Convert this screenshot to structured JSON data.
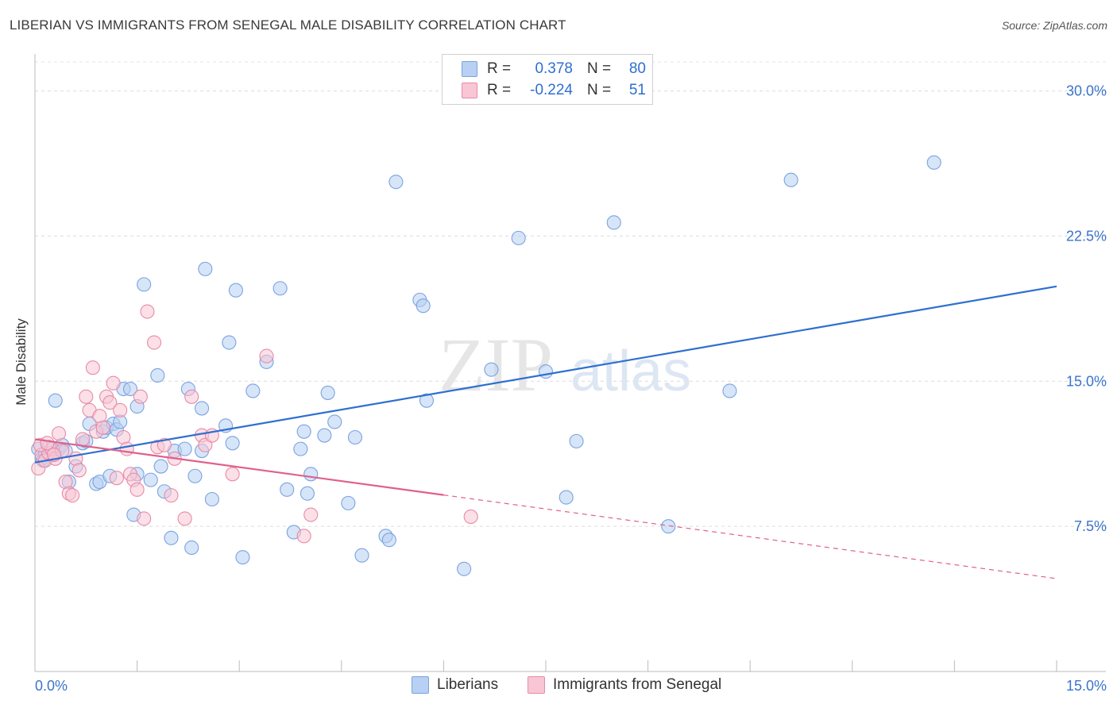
{
  "title": "LIBERIAN VS IMMIGRANTS FROM SENEGAL MALE DISABILITY CORRELATION CHART",
  "source": "Source: ZipAtlas.com",
  "watermark": {
    "zip": "ZIP",
    "atlas": "atlas"
  },
  "legend": {
    "r_label": "R =",
    "n_label": "N =",
    "rows": [
      {
        "r": "0.378",
        "n": "80",
        "color": "#b7d0f3",
        "border": "#7aa3e0"
      },
      {
        "r": "-0.224",
        "n": "51",
        "color": "#f8c6d4",
        "border": "#e88aa8"
      }
    ]
  },
  "bottom_legend": [
    {
      "label": "Liberians",
      "color": "#b7d0f3",
      "border": "#7aa3e0"
    },
    {
      "label": "Immigrants from Senegal",
      "color": "#f8c6d4",
      "border": "#e88aa8"
    }
  ],
  "chart_data": {
    "type": "scatter",
    "xlabel": "",
    "ylabel": "Male Disability",
    "xlim": [
      0,
      15
    ],
    "ylim": [
      0,
      31.5
    ],
    "x_tick_labels": [
      "0.0%",
      "15.0%"
    ],
    "y_ticks": [
      7.5,
      15.0,
      22.5,
      30.0
    ],
    "y_tick_labels": [
      "7.5%",
      "15.0%",
      "22.5%",
      "30.0%"
    ],
    "grid": true,
    "legend_position": "top-center",
    "series": [
      {
        "name": "Liberians",
        "color": "#7aa3e0",
        "fill": "#b7d0f3",
        "trend": {
          "x": [
            0,
            15
          ],
          "y": [
            10.8,
            19.9
          ],
          "color": "#2e6fd0",
          "dashed_from": null
        },
        "points": [
          [
            0.05,
            11.5
          ],
          [
            0.1,
            11.0
          ],
          [
            0.15,
            11.3
          ],
          [
            0.2,
            11.6
          ],
          [
            0.25,
            11.2
          ],
          [
            0.3,
            14.0
          ],
          [
            0.35,
            11.5
          ],
          [
            0.4,
            11.7
          ],
          [
            0.45,
            11.4
          ],
          [
            0.5,
            9.8
          ],
          [
            0.6,
            10.6
          ],
          [
            0.7,
            11.8
          ],
          [
            0.75,
            11.9
          ],
          [
            0.8,
            12.8
          ],
          [
            0.9,
            9.7
          ],
          [
            0.95,
            9.8
          ],
          [
            1.0,
            12.4
          ],
          [
            1.05,
            12.6
          ],
          [
            1.1,
            10.1
          ],
          [
            1.15,
            12.8
          ],
          [
            1.2,
            12.5
          ],
          [
            1.25,
            12.9
          ],
          [
            1.3,
            14.6
          ],
          [
            1.4,
            14.6
          ],
          [
            1.45,
            8.1
          ],
          [
            1.5,
            13.7
          ],
          [
            1.5,
            10.2
          ],
          [
            1.6,
            20.0
          ],
          [
            1.7,
            9.9
          ],
          [
            1.8,
            15.3
          ],
          [
            1.85,
            10.6
          ],
          [
            1.9,
            9.3
          ],
          [
            2.0,
            6.9
          ],
          [
            2.05,
            11.4
          ],
          [
            2.2,
            11.5
          ],
          [
            2.25,
            14.6
          ],
          [
            2.3,
            6.4
          ],
          [
            2.35,
            10.1
          ],
          [
            2.45,
            11.4
          ],
          [
            2.45,
            13.6
          ],
          [
            2.5,
            20.8
          ],
          [
            2.6,
            8.9
          ],
          [
            2.8,
            12.7
          ],
          [
            2.85,
            17.0
          ],
          [
            2.9,
            11.8
          ],
          [
            2.95,
            19.7
          ],
          [
            3.05,
            5.9
          ],
          [
            3.2,
            14.5
          ],
          [
            3.4,
            16.0
          ],
          [
            3.6,
            19.8
          ],
          [
            3.7,
            9.4
          ],
          [
            3.8,
            7.2
          ],
          [
            3.9,
            11.5
          ],
          [
            3.95,
            12.4
          ],
          [
            4.0,
            9.2
          ],
          [
            4.05,
            10.2
          ],
          [
            4.25,
            12.2
          ],
          [
            4.3,
            14.4
          ],
          [
            4.4,
            12.9
          ],
          [
            4.6,
            8.7
          ],
          [
            4.7,
            12.1
          ],
          [
            4.8,
            6.0
          ],
          [
            5.15,
            7.0
          ],
          [
            5.2,
            6.8
          ],
          [
            5.3,
            25.3
          ],
          [
            5.65,
            19.2
          ],
          [
            5.7,
            18.9
          ],
          [
            5.75,
            14.0
          ],
          [
            6.3,
            5.3
          ],
          [
            6.7,
            15.6
          ],
          [
            7.1,
            22.4
          ],
          [
            7.5,
            15.5
          ],
          [
            7.8,
            9.0
          ],
          [
            7.95,
            11.9
          ],
          [
            8.5,
            23.2
          ],
          [
            9.3,
            7.5
          ],
          [
            10.2,
            14.5
          ],
          [
            11.1,
            25.4
          ],
          [
            13.2,
            26.3
          ],
          [
            0.12,
            10.9
          ]
        ]
      },
      {
        "name": "Immigrants from Senegal",
        "color": "#e88aa8",
        "fill": "#f8c6d4",
        "trend": {
          "x": [
            0,
            15
          ],
          "y": [
            12.0,
            4.8
          ],
          "color": "#e0608c",
          "dashed_from": 6.0
        },
        "points": [
          [
            0.05,
            10.5
          ],
          [
            0.1,
            11.2
          ],
          [
            0.15,
            10.9
          ],
          [
            0.2,
            11.3
          ],
          [
            0.25,
            11.5
          ],
          [
            0.3,
            11.0
          ],
          [
            0.35,
            12.3
          ],
          [
            0.4,
            11.4
          ],
          [
            0.45,
            9.8
          ],
          [
            0.5,
            9.2
          ],
          [
            0.55,
            9.1
          ],
          [
            0.6,
            11.0
          ],
          [
            0.65,
            10.4
          ],
          [
            0.7,
            12.0
          ],
          [
            0.75,
            14.2
          ],
          [
            0.8,
            13.5
          ],
          [
            0.85,
            15.7
          ],
          [
            0.9,
            12.4
          ],
          [
            0.95,
            13.2
          ],
          [
            1.0,
            12.6
          ],
          [
            1.05,
            14.2
          ],
          [
            1.1,
            13.9
          ],
          [
            1.15,
            14.9
          ],
          [
            1.2,
            10.0
          ],
          [
            1.25,
            13.5
          ],
          [
            1.3,
            12.1
          ],
          [
            1.35,
            11.5
          ],
          [
            1.4,
            10.2
          ],
          [
            1.45,
            9.9
          ],
          [
            1.5,
            9.4
          ],
          [
            1.55,
            14.2
          ],
          [
            1.6,
            7.9
          ],
          [
            1.65,
            18.6
          ],
          [
            1.75,
            17.0
          ],
          [
            1.8,
            11.6
          ],
          [
            1.9,
            11.7
          ],
          [
            2.0,
            9.1
          ],
          [
            2.05,
            11.0
          ],
          [
            2.2,
            7.9
          ],
          [
            2.3,
            14.2
          ],
          [
            2.45,
            12.2
          ],
          [
            2.5,
            11.7
          ],
          [
            2.6,
            12.2
          ],
          [
            2.9,
            10.2
          ],
          [
            3.4,
            16.3
          ],
          [
            3.95,
            7.0
          ],
          [
            4.05,
            8.1
          ],
          [
            6.4,
            8.0
          ],
          [
            0.08,
            11.7
          ],
          [
            0.18,
            11.8
          ],
          [
            0.28,
            11.2
          ]
        ]
      }
    ]
  }
}
